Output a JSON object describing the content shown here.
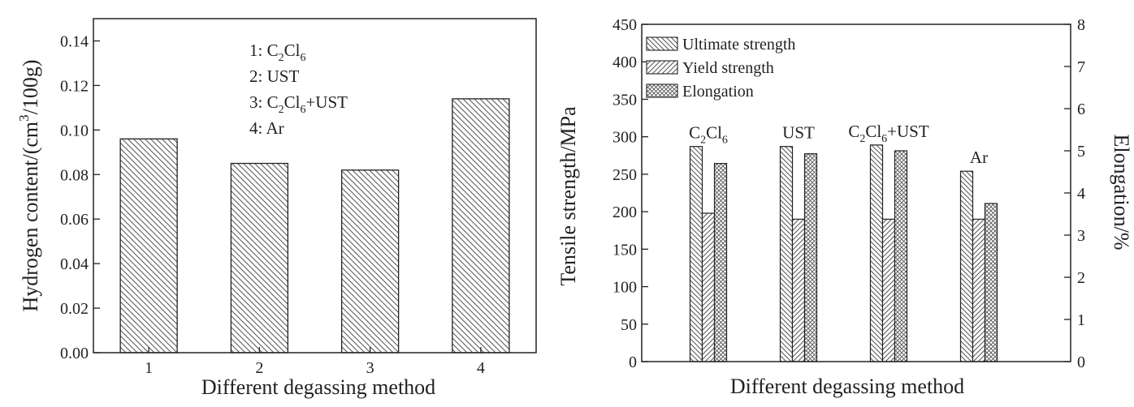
{
  "chart_data": [
    {
      "type": "bar",
      "title": "",
      "xlabel": "Different degassing method",
      "ylabel_parts": {
        "main": "Hydrogen content/(cm",
        "sup": "3",
        "tail": "/100g)"
      },
      "categories": [
        "1",
        "2",
        "3",
        "4"
      ],
      "values": [
        0.096,
        0.085,
        0.082,
        0.114
      ],
      "ylim": [
        0,
        0.15
      ],
      "yticks": [
        "0.00",
        "0.02",
        "0.04",
        "0.06",
        "0.08",
        "0.10",
        "0.12",
        "0.14"
      ],
      "legend": [
        {
          "num": "1: ",
          "parts": [
            [
              "C",
              ""
            ],
            [
              "2",
              "sub"
            ],
            [
              "Cl",
              ""
            ],
            [
              "6",
              "sub"
            ]
          ]
        },
        {
          "num": "2: ",
          "parts": [
            [
              "UST",
              ""
            ]
          ]
        },
        {
          "num": "3: ",
          "parts": [
            [
              "C",
              ""
            ],
            [
              "2",
              "sub"
            ],
            [
              "Cl",
              ""
            ],
            [
              "6",
              "sub"
            ],
            [
              "+UST",
              ""
            ]
          ]
        },
        {
          "num": "4: ",
          "parts": [
            [
              "Ar",
              ""
            ]
          ]
        }
      ],
      "grid": false
    },
    {
      "type": "bar",
      "title": "",
      "xlabel": "Different degassing method",
      "ylabel": "Tensile strength/MPa",
      "y2label": "Elongation/%",
      "groups": [
        {
          "label_parts": [
            [
              "C",
              ""
            ],
            [
              "2",
              "sub"
            ],
            [
              "Cl",
              ""
            ],
            [
              "6",
              "sub"
            ]
          ]
        },
        {
          "label_parts": [
            [
              "UST",
              ""
            ]
          ]
        },
        {
          "label_parts": [
            [
              "C",
              ""
            ],
            [
              "2",
              "sub"
            ],
            [
              "Cl",
              ""
            ],
            [
              "6",
              "sub"
            ],
            [
              "+UST",
              ""
            ]
          ]
        },
        {
          "label_parts": [
            [
              "Ar",
              ""
            ]
          ]
        }
      ],
      "series": [
        {
          "name": "Ultimate strength",
          "axis": "left",
          "values": [
            287,
            287,
            289,
            254
          ]
        },
        {
          "name": "Yield strength",
          "axis": "left",
          "values": [
            198,
            190,
            190,
            190
          ]
        },
        {
          "name": "Elongation",
          "axis": "right",
          "values": [
            4.7,
            4.93,
            5.0,
            3.75
          ]
        }
      ],
      "ylim": [
        0,
        450
      ],
      "y2lim": [
        0,
        8
      ],
      "yticks": [
        "0",
        "50",
        "100",
        "150",
        "200",
        "250",
        "300",
        "350",
        "400",
        "450"
      ],
      "y2ticks": [
        "0",
        "1",
        "2",
        "3",
        "4",
        "5",
        "6",
        "7",
        "8"
      ],
      "legend_position": "top-left",
      "grid": false
    }
  ]
}
